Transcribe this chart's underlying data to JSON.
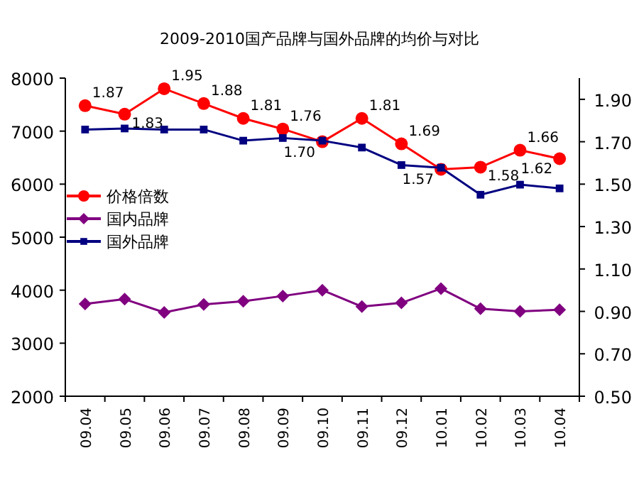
{
  "chart_data": {
    "type": "line",
    "title": "2009-2010国产品牌与国外品牌的均价与对比",
    "categories": [
      "09.04",
      "09.05",
      "09.06",
      "09.07",
      "09.08",
      "09.09",
      "09.10",
      "09.11",
      "09.12",
      "10.01",
      "10.02",
      "10.03",
      "10.04"
    ],
    "series": [
      {
        "name": "价格倍数",
        "color": "#ff0000",
        "marker": "circle",
        "axis": "y2",
        "values": [
          1.87,
          1.83,
          1.95,
          1.88,
          1.81,
          1.76,
          1.7,
          1.81,
          1.69,
          1.57,
          1.58,
          1.66,
          1.62
        ],
        "value_labels": [
          "1.87",
          "1.83",
          "1.95",
          "1.88",
          "1.81",
          "1.76",
          "1.70",
          "1.81",
          "1.69",
          "1.57",
          "1.58",
          "1.66",
          "1.62"
        ]
      },
      {
        "name": "国内品牌",
        "color": "#800080",
        "marker": "diamond",
        "values": [
          3740,
          3830,
          3580,
          3730,
          3790,
          3890,
          4000,
          3690,
          3760,
          4030,
          3650,
          3600,
          3630
        ]
      },
      {
        "name": "国外品牌",
        "color": "#000080",
        "marker": "square",
        "values": [
          7030,
          7050,
          7030,
          7030,
          6820,
          6870,
          6820,
          6690,
          6360,
          6310,
          5800,
          5990,
          5920
        ]
      }
    ],
    "ylim": [
      2000,
      8000
    ],
    "yticks": [
      2000,
      3000,
      4000,
      5000,
      6000,
      7000,
      8000
    ],
    "y2lim": [
      0.5,
      2.0
    ],
    "y2ticks": [
      {
        "value": 0.5,
        "label": "0.50"
      },
      {
        "value": 0.7,
        "label": "0.70"
      },
      {
        "value": 0.9,
        "label": "0.90"
      },
      {
        "value": 1.1,
        "label": "1.10"
      },
      {
        "value": 1.3,
        "label": "1.30"
      },
      {
        "value": 1.5,
        "label": "1.50"
      },
      {
        "value": 1.7,
        "label": "1.70"
      },
      {
        "value": 1.9,
        "label": "1.90"
      }
    ],
    "grid": false,
    "legend": "left"
  }
}
